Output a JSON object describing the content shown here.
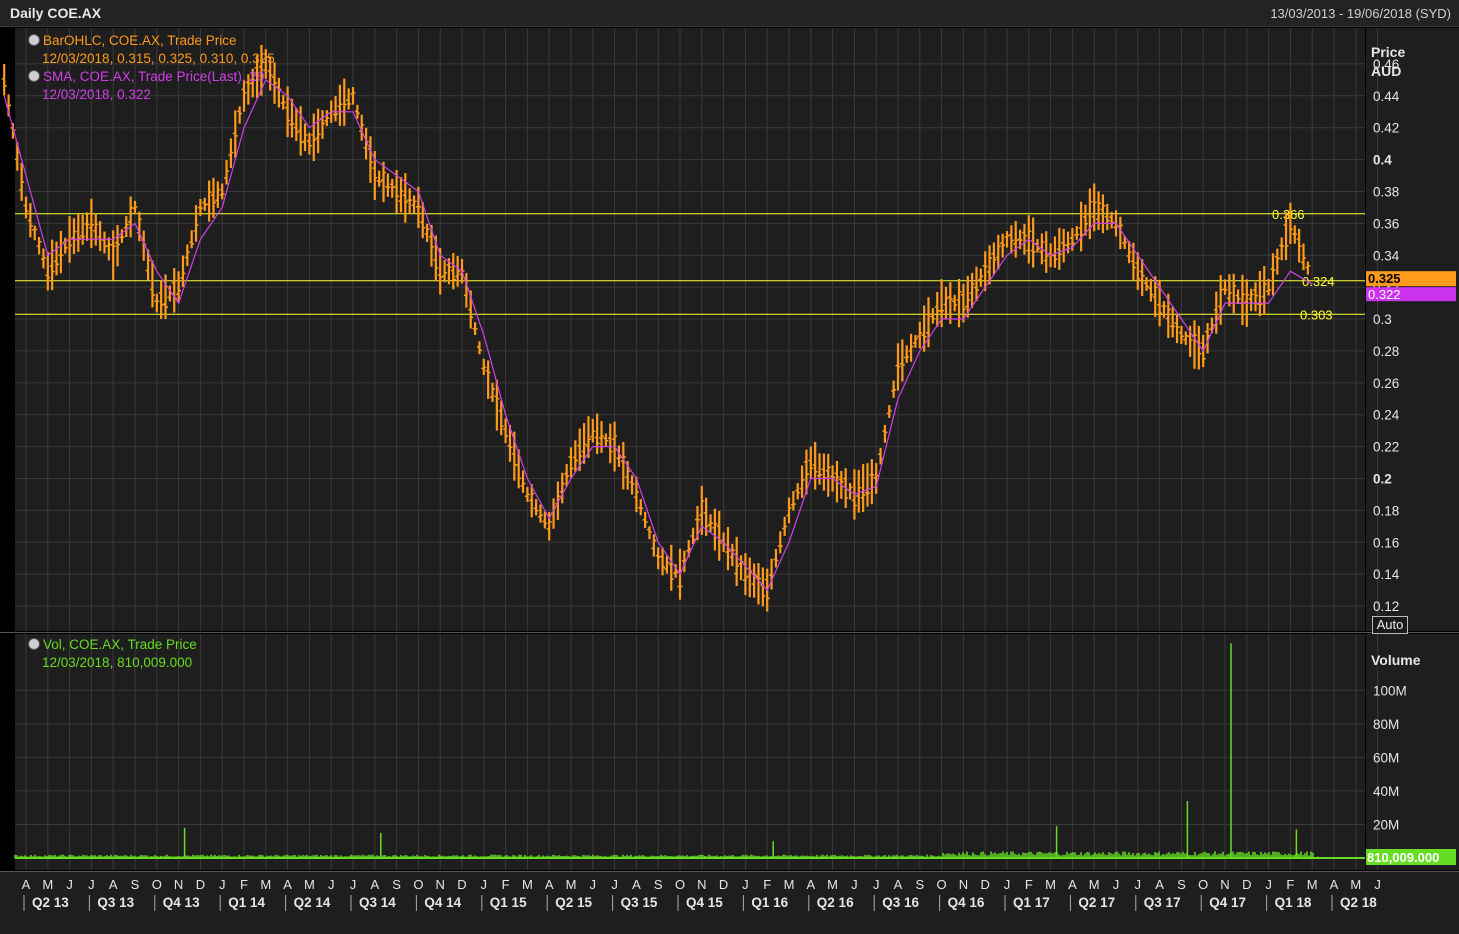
{
  "header": {
    "title": "Daily COE.AX",
    "date_range": "13/03/2013 - 19/06/2018 (SYD)"
  },
  "price_pane": {
    "legend_ohlc_title": "BarOHLC, COE.AX, Trade Price",
    "legend_ohlc_values": "12/03/2018, 0.315, 0.325, 0.310, 0.325",
    "legend_sma_title": "SMA, COE.AX, Trade Price(Last),  20",
    "legend_sma_values": "12/03/2018, 0.322",
    "axis_title": "Price",
    "axis_unit": "AUD",
    "auto_label": "Auto",
    "last_price_tag": "0.325",
    "last_sma_tag": "0.322"
  },
  "volume_pane": {
    "legend_title": "Vol, COE.AX, Trade Price",
    "legend_values": "12/03/2018, 810,009.000",
    "axis_title": "Volume",
    "last_volume_tag": "810,009.000"
  },
  "colors": {
    "background": "#000000",
    "pane": "#1e1e1e",
    "grid": "#3a3a3a",
    "price_bars": "#ff9a1a",
    "sma": "#d040e8",
    "volume": "#66dd22",
    "hline": "#ffff33",
    "sma_tag_bg": "#cc33ee",
    "price_tag_bg": "#ff9a1a"
  },
  "chart_data": [
    {
      "type": "line",
      "subtype": "OHLC bars with 20-period SMA",
      "series": [
        {
          "name": "BarOHLC, COE.AX, Trade Price",
          "x": [
            "2013-03",
            "2013-04",
            "2013-05",
            "2013-06",
            "2013-07",
            "2013-08",
            "2013-09",
            "2013-10",
            "2013-11",
            "2013-12",
            "2014-01",
            "2014-02",
            "2014-03",
            "2014-04",
            "2014-05",
            "2014-06",
            "2014-07",
            "2014-08",
            "2014-09",
            "2014-10",
            "2014-11",
            "2014-12",
            "2015-01",
            "2015-02",
            "2015-03",
            "2015-04",
            "2015-05",
            "2015-06",
            "2015-07",
            "2015-08",
            "2015-09",
            "2015-10",
            "2015-11",
            "2015-12",
            "2016-01",
            "2016-02",
            "2016-03",
            "2016-04",
            "2016-05",
            "2016-06",
            "2016-07",
            "2016-08",
            "2016-09",
            "2016-10",
            "2016-11",
            "2016-12",
            "2017-01",
            "2017-02",
            "2017-03",
            "2017-04",
            "2017-05",
            "2017-06",
            "2017-07",
            "2017-08",
            "2017-09",
            "2017-10",
            "2017-11",
            "2017-12",
            "2018-01",
            "2018-02",
            "2018-03"
          ],
          "values": [
            0.45,
            0.37,
            0.33,
            0.35,
            0.36,
            0.34,
            0.37,
            0.31,
            0.32,
            0.37,
            0.38,
            0.44,
            0.46,
            0.43,
            0.41,
            0.43,
            0.44,
            0.39,
            0.38,
            0.37,
            0.33,
            0.33,
            0.27,
            0.23,
            0.19,
            0.17,
            0.21,
            0.23,
            0.22,
            0.19,
            0.15,
            0.14,
            0.18,
            0.16,
            0.14,
            0.13,
            0.18,
            0.21,
            0.2,
            0.19,
            0.2,
            0.27,
            0.29,
            0.31,
            0.31,
            0.33,
            0.35,
            0.35,
            0.34,
            0.35,
            0.37,
            0.36,
            0.33,
            0.31,
            0.29,
            0.28,
            0.32,
            0.31,
            0.32,
            0.36,
            0.325
          ]
        },
        {
          "name": "SMA, COE.AX, Trade Price(Last),  20",
          "x": [
            "2013-03",
            "2013-04",
            "2013-05",
            "2013-06",
            "2013-07",
            "2013-08",
            "2013-09",
            "2013-10",
            "2013-11",
            "2013-12",
            "2014-01",
            "2014-02",
            "2014-03",
            "2014-04",
            "2014-05",
            "2014-06",
            "2014-07",
            "2014-08",
            "2014-09",
            "2014-10",
            "2014-11",
            "2014-12",
            "2015-01",
            "2015-02",
            "2015-03",
            "2015-04",
            "2015-05",
            "2015-06",
            "2015-07",
            "2015-08",
            "2015-09",
            "2015-10",
            "2015-11",
            "2015-12",
            "2016-01",
            "2016-02",
            "2016-03",
            "2016-04",
            "2016-05",
            "2016-06",
            "2016-07",
            "2016-08",
            "2016-09",
            "2016-10",
            "2016-11",
            "2016-12",
            "2017-01",
            "2017-02",
            "2017-03",
            "2017-04",
            "2017-05",
            "2017-06",
            "2017-07",
            "2017-08",
            "2017-09",
            "2017-10",
            "2017-11",
            "2017-12",
            "2018-01",
            "2018-02",
            "2018-03"
          ],
          "values": [
            0.44,
            0.39,
            0.34,
            0.35,
            0.35,
            0.35,
            0.36,
            0.33,
            0.31,
            0.35,
            0.37,
            0.42,
            0.45,
            0.44,
            0.42,
            0.43,
            0.43,
            0.4,
            0.39,
            0.38,
            0.34,
            0.33,
            0.29,
            0.24,
            0.2,
            0.175,
            0.2,
            0.22,
            0.22,
            0.2,
            0.16,
            0.14,
            0.17,
            0.16,
            0.145,
            0.13,
            0.16,
            0.2,
            0.2,
            0.19,
            0.195,
            0.25,
            0.28,
            0.3,
            0.3,
            0.32,
            0.34,
            0.35,
            0.34,
            0.345,
            0.36,
            0.36,
            0.34,
            0.32,
            0.3,
            0.28,
            0.31,
            0.31,
            0.31,
            0.33,
            0.322
          ]
        }
      ],
      "horizontal_lines": [
        0.366,
        0.324,
        0.303
      ],
      "ylabel": "Price AUD",
      "yticks": [
        0.12,
        0.14,
        0.16,
        0.18,
        0.2,
        0.22,
        0.24,
        0.26,
        0.28,
        0.3,
        0.32,
        0.34,
        0.36,
        0.38,
        0.4,
        0.42,
        0.44,
        0.46
      ],
      "ylim": [
        0.11,
        0.475
      ],
      "grid": true,
      "legend": "top-left"
    },
    {
      "type": "bar",
      "series": [
        {
          "name": "Vol, COE.AX, Trade Price",
          "x": [
            "2013-11",
            "2014-08",
            "2016-02",
            "2017-03",
            "2017-09",
            "2017-11",
            "2018-02",
            "2018-03"
          ],
          "values": [
            18000000,
            15000000,
            10000000,
            19000000,
            34000000,
            128000000,
            17000000,
            810009
          ]
        }
      ],
      "ylabel": "Volume",
      "ytick_labels": [
        "20M",
        "40M",
        "60M",
        "80M",
        "100M"
      ],
      "ylim": [
        0,
        130000000
      ],
      "grid": true
    }
  ],
  "xaxis": {
    "months": [
      "A",
      "M",
      "J",
      "J",
      "A",
      "S",
      "O",
      "N",
      "D",
      "J",
      "F",
      "M",
      "A",
      "M",
      "J",
      "J",
      "A",
      "S",
      "O",
      "N",
      "D",
      "J",
      "F",
      "M",
      "A",
      "M",
      "J",
      "J",
      "A",
      "S",
      "O",
      "N",
      "D",
      "J",
      "F",
      "M",
      "A",
      "M",
      "J",
      "J",
      "A",
      "S",
      "O",
      "N",
      "D",
      "J",
      "F",
      "M",
      "A",
      "M",
      "J",
      "J",
      "A",
      "S",
      "O",
      "N",
      "D",
      "J",
      "F",
      "M",
      "A",
      "M",
      "J"
    ],
    "quarters": [
      "Q2 13",
      "Q3 13",
      "Q4 13",
      "Q1 14",
      "Q2 14",
      "Q3 14",
      "Q4 14",
      "Q1 15",
      "Q2 15",
      "Q3 15",
      "Q4 15",
      "Q1 16",
      "Q2 16",
      "Q3 16",
      "Q4 16",
      "Q1 17",
      "Q2 17",
      "Q3 17",
      "Q4 17",
      "Q1 18",
      "Q2 18"
    ]
  }
}
